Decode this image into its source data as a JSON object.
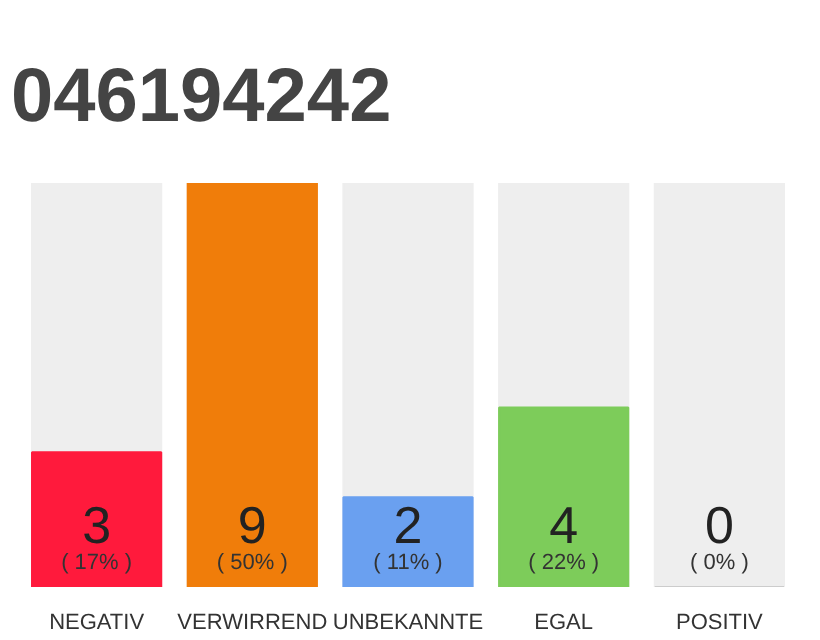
{
  "chart_data": {
    "type": "bar",
    "title": "046194242",
    "categories": [
      "NEGATIV",
      "VERWIRREND",
      "UNBEKANNTE",
      "EGAL",
      "POSITIV"
    ],
    "values": [
      3,
      9,
      2,
      4,
      0
    ],
    "colors": [
      "#ff1a3c",
      "#f07d0a",
      "#6aa0f0",
      "#7dcc5a",
      "#cccccc"
    ],
    "value_labels": [
      "3",
      "9",
      "2",
      "4",
      "0"
    ],
    "annotations": [
      "( 17% )",
      "( 50% )",
      "( 11% )",
      "( 22% )",
      "( 0% )"
    ],
    "grid": false
  }
}
